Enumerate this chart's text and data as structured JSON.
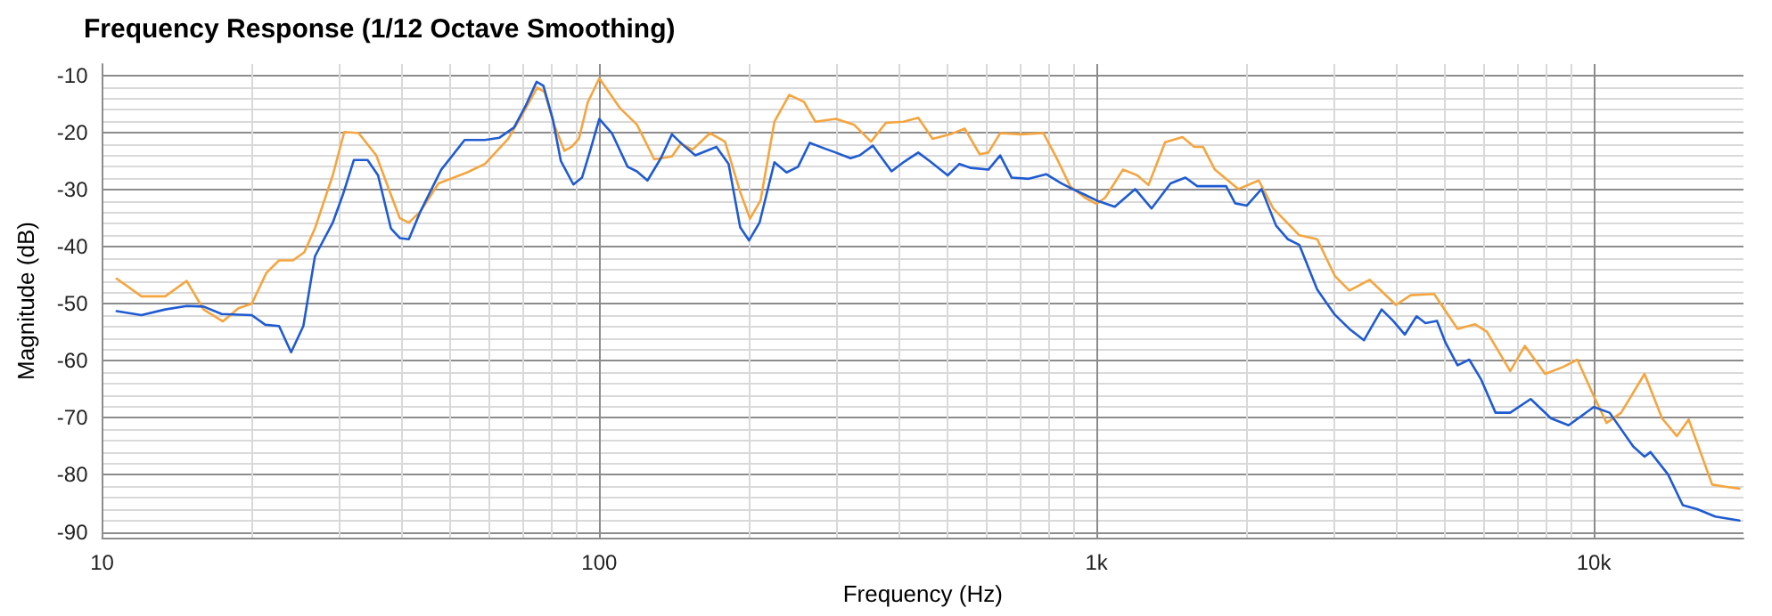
{
  "chart_data": {
    "type": "line",
    "title": "Frequency Response (1/12 Octave Smoothing)",
    "xlabel": "Frequency (Hz)",
    "ylabel": "Magnitude (dB)",
    "log": "x",
    "grid": true,
    "marker": "none",
    "line_style": "solid",
    "xlim": [
      10,
      20000
    ],
    "ylim": [
      -91,
      -8
    ],
    "xticks": [
      10,
      {
        "value": 20,
        "label": null
      },
      {
        "value": 30,
        "label": null
      },
      {
        "value": 40,
        "label": null
      },
      {
        "value": 50,
        "label": null
      },
      {
        "value": 60,
        "label": null
      },
      {
        "value": 70,
        "label": null
      },
      {
        "value": 80,
        "label": null
      },
      {
        "value": 90,
        "label": null
      },
      100,
      {
        "value": 200,
        "label": null
      },
      {
        "value": 300,
        "label": null
      },
      {
        "value": 400,
        "label": null
      },
      {
        "value": 500,
        "label": null
      },
      {
        "value": 600,
        "label": null
      },
      {
        "value": 700,
        "label": null
      },
      {
        "value": 800,
        "label": null
      },
      {
        "value": 900,
        "label": null
      },
      {
        "value": 1000,
        "label": "1k"
      },
      {
        "value": 2000,
        "label": null
      },
      {
        "value": 3000,
        "label": null
      },
      {
        "value": 4000,
        "label": null
      },
      {
        "value": 5000,
        "label": null
      },
      {
        "value": 6000,
        "label": null
      },
      {
        "value": 7000,
        "label": null
      },
      {
        "value": 8000,
        "label": null
      },
      {
        "value": 9000,
        "label": null
      },
      {
        "value": 10000,
        "label": "10k"
      }
    ],
    "yticks": [
      -90,
      {
        "value": -88,
        "label": null
      },
      {
        "value": -86,
        "label": null
      },
      {
        "value": -84,
        "label": null
      },
      {
        "value": -82,
        "label": null
      },
      -80,
      {
        "value": -78,
        "label": null
      },
      {
        "value": -76,
        "label": null
      },
      {
        "value": -74,
        "label": null
      },
      {
        "value": -72,
        "label": null
      },
      -70,
      {
        "value": -68,
        "label": null
      },
      {
        "value": -66,
        "label": null
      },
      {
        "value": -64,
        "label": null
      },
      {
        "value": -62,
        "label": null
      },
      -60,
      {
        "value": -58,
        "label": null
      },
      {
        "value": -56,
        "label": null
      },
      {
        "value": -54,
        "label": null
      },
      {
        "value": -52,
        "label": null
      },
      -50,
      {
        "value": -48,
        "label": null
      },
      {
        "value": -46,
        "label": null
      },
      {
        "value": -44,
        "label": null
      },
      {
        "value": -42,
        "label": null
      },
      -40,
      {
        "value": -38,
        "label": null
      },
      {
        "value": -36,
        "label": null
      },
      {
        "value": -34,
        "label": null
      },
      {
        "value": -32,
        "label": null
      },
      -30,
      {
        "value": -28,
        "label": null
      },
      {
        "value": -26,
        "label": null
      },
      {
        "value": -24,
        "label": null
      },
      {
        "value": -22,
        "label": null
      },
      -20,
      {
        "value": -18,
        "label": null
      },
      {
        "value": -16,
        "label": null
      },
      {
        "value": -14,
        "label": null
      },
      {
        "value": -12,
        "label": null
      },
      -10
    ],
    "series": [
      {
        "color": "#f5a53f",
        "x": [
          10.7,
          12,
          13.4,
          14.8,
          16,
          17.5,
          18.8,
          20,
          21.4,
          22.7,
          24.2,
          25.5,
          26.8,
          29.1,
          30.7,
          32.8,
          35.6,
          38.1,
          39.7,
          41.4,
          43.7,
          47.5,
          54.2,
          58.9,
          65.6,
          69.2,
          73.3,
          75,
          77.6,
          81.1,
          85.1,
          88,
          91,
          94.8,
          100,
          110,
          119,
          129,
          140,
          146,
          154,
          167,
          179,
          192,
          201,
          211,
          225,
          241,
          258,
          272,
          299,
          325,
          352,
          377,
          409,
          438,
          468,
          508,
          543,
          582,
          606,
          640,
          703,
          782,
          837,
          885,
          947,
          1000,
          1041,
          1130,
          1208,
          1272,
          1374,
          1489,
          1572,
          1637,
          1730,
          1927,
          2120,
          2266,
          2558,
          2778,
          3013,
          3224,
          3541,
          4000,
          4283,
          4774,
          5322,
          5773,
          6095,
          6790,
          7265,
          7985,
          8664,
          9268,
          10000,
          10610,
          11350,
          12650,
          13720,
          14690,
          15520,
          17300,
          18500,
          19630
        ],
        "values": [
          -45.6,
          -48.7,
          -48.7,
          -46,
          -51,
          -53.1,
          -50.8,
          -50,
          -44.6,
          -42.4,
          -42.4,
          -41,
          -36.8,
          -27.5,
          -19.9,
          -20.1,
          -24,
          -30.9,
          -35,
          -35.8,
          -33.8,
          -28.9,
          -27,
          -25.5,
          -21.1,
          -17.6,
          -13.7,
          -12.1,
          -12.9,
          -18.6,
          -23.2,
          -22.5,
          -21.1,
          -14.7,
          -10.5,
          -15.7,
          -18.6,
          -24.7,
          -24.2,
          -21.9,
          -23,
          -20.1,
          -21.6,
          -30.4,
          -35.1,
          -31.9,
          -18.1,
          -13.4,
          -14.6,
          -18.1,
          -17.6,
          -18.6,
          -21.6,
          -18.3,
          -18.1,
          -17.4,
          -21.1,
          -20.3,
          -19.3,
          -23.8,
          -23.5,
          -20.1,
          -20.3,
          -20.1,
          -25,
          -29.4,
          -31.4,
          -32.5,
          -31.4,
          -26.5,
          -27.5,
          -29.2,
          -21.7,
          -20.8,
          -22.5,
          -22.5,
          -26.5,
          -29.9,
          -28.4,
          -33.3,
          -38,
          -38.7,
          -45.1,
          -47.7,
          -45.8,
          -50.2,
          -48.5,
          -48.3,
          -54.4,
          -53.6,
          -54.9,
          -61.8,
          -57.4,
          -62.3,
          -61.1,
          -59.8,
          -66.2,
          -70.9,
          -69.1,
          -62.3,
          -70.1,
          -73.2,
          -70.3,
          -81.7,
          -82.1,
          -82.4
        ]
      },
      {
        "color": "#1f5bd1",
        "x": [
          10.7,
          12,
          13.4,
          14.8,
          16,
          17.4,
          20,
          21.3,
          22.7,
          24,
          25.4,
          26.8,
          29.1,
          30.5,
          32.1,
          34.2,
          35.9,
          38.1,
          39.7,
          41.4,
          43.7,
          48.1,
          53.6,
          58.9,
          63,
          67.4,
          71.2,
          74.8,
          77.2,
          80.6,
          83.7,
          88.7,
          92.3,
          96,
          100,
          106,
          114,
          119,
          125,
          133,
          140,
          147,
          156,
          172,
          182,
          192,
          200,
          210,
          225,
          238,
          251,
          265,
          284,
          299,
          320,
          334,
          355,
          387,
          409,
          438,
          462,
          502,
          530,
          559,
          606,
          640,
          675,
          731,
          792,
          849,
          895,
          947,
          1000,
          1088,
          1196,
          1290,
          1409,
          1509,
          1594,
          1753,
          1822,
          1900,
          2006,
          2147,
          2296,
          2426,
          2558,
          2778,
          3013,
          3224,
          3450,
          3744,
          3948,
          4169,
          4402,
          4586,
          4838,
          5038,
          5322,
          5617,
          5929,
          6345,
          6790,
          7466,
          8205,
          8897,
          10000,
          10760,
          12000,
          12650,
          13000,
          14100,
          15100,
          16150,
          17540,
          19630
        ],
        "values": [
          -51.3,
          -52,
          -51,
          -50.4,
          -50.5,
          -51.8,
          -52,
          -53.7,
          -53.9,
          -58.5,
          -53.9,
          -41.7,
          -35.8,
          -30.9,
          -24.8,
          -24.8,
          -27.5,
          -36.8,
          -38.5,
          -38.7,
          -33.8,
          -26.5,
          -21.3,
          -21.3,
          -20.9,
          -19.1,
          -15.2,
          -11.1,
          -11.8,
          -17.6,
          -25,
          -29.1,
          -27.9,
          -23,
          -17.6,
          -20.1,
          -26,
          -26.8,
          -28.4,
          -24.5,
          -20.3,
          -22.1,
          -24,
          -22.5,
          -25.5,
          -36.6,
          -38.9,
          -35.8,
          -25.2,
          -27,
          -26,
          -21.8,
          -22.8,
          -23.5,
          -24.5,
          -24,
          -22.3,
          -26.8,
          -25.2,
          -23.5,
          -25,
          -27.5,
          -25.5,
          -26.2,
          -26.5,
          -24,
          -27.9,
          -28.1,
          -27.3,
          -28.9,
          -29.9,
          -30.9,
          -31.9,
          -33,
          -29.9,
          -33.3,
          -28.9,
          -27.9,
          -29.4,
          -29.4,
          -29.4,
          -32.4,
          -32.8,
          -29.9,
          -36.3,
          -38.7,
          -39.7,
          -47.5,
          -51.9,
          -54.4,
          -56.4,
          -51,
          -53,
          -55.4,
          -52.2,
          -53.4,
          -53,
          -56.9,
          -60.8,
          -59.8,
          -63.2,
          -69.1,
          -69.1,
          -66.7,
          -70.1,
          -71.3,
          -68.1,
          -69.1,
          -75,
          -76.8,
          -76,
          -79.9,
          -85.3,
          -86,
          -87.3,
          -88
        ]
      }
    ]
  }
}
